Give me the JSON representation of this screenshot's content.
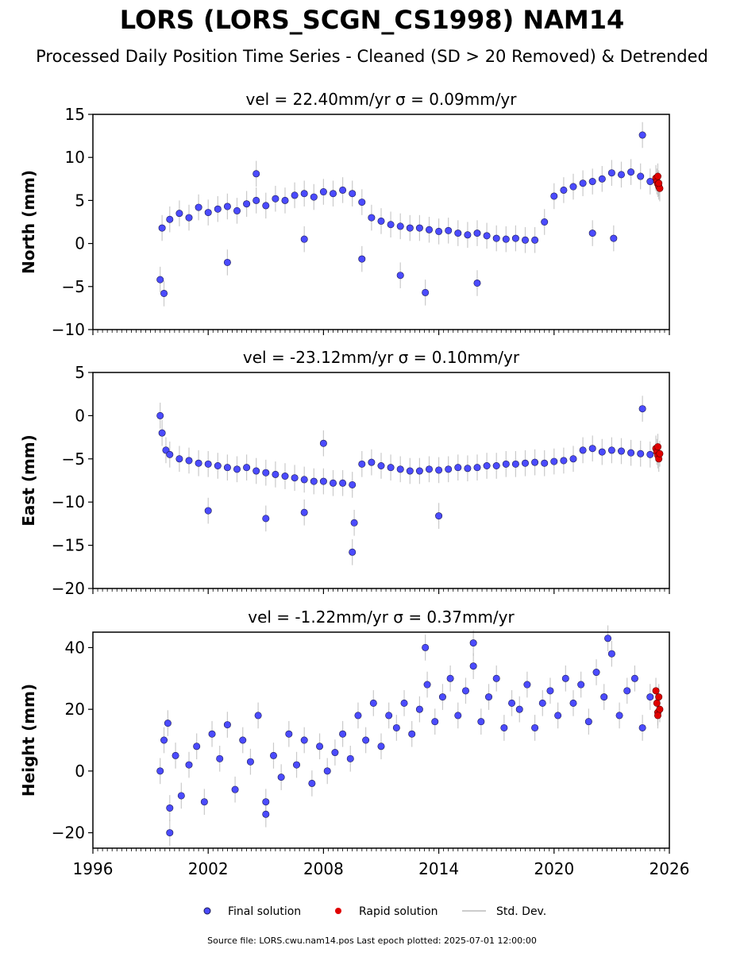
{
  "figure": {
    "title": "LORS (LORS_SCGN_CS1998) NAM14",
    "subtitle": "Processed Daily Position Time Series - Cleaned (SD > 20 Removed) & Detrended",
    "footer": "Source file: LORS.cwu.nam14.pos  Last epoch plotted: 2025-07-01 12:00:00"
  },
  "legend": {
    "final_label": "Final solution",
    "rapid_label": "Rapid solution",
    "std_label": "Std. Dev."
  },
  "colors": {
    "final": "#4b4bff",
    "rapid": "#e00000",
    "std": "#808080",
    "edge": "#1a1a50"
  },
  "chart_data": [
    {
      "type": "scatter",
      "title": "vel = 22.40mm/yr   σ = 0.09mm/yr",
      "xlabel": "",
      "ylabel": "North (mm)",
      "xlim": [
        1996,
        2026
      ],
      "ylim": [
        -10,
        15
      ],
      "yticks": [
        -10,
        -5,
        0,
        5,
        10,
        15
      ],
      "xticks": [
        1996,
        2002,
        2008,
        2014,
        2020,
        2026
      ],
      "grid": false,
      "legend": "bottom-center",
      "series": [
        {
          "name": "Final solution",
          "values": [
            [
              1999.5,
              -4.2
            ],
            [
              1999.6,
              1.8
            ],
            [
              1999.7,
              -5.8
            ],
            [
              2000.0,
              2.8
            ],
            [
              2000.5,
              3.5
            ],
            [
              2001.0,
              3.0
            ],
            [
              2001.5,
              4.2
            ],
            [
              2002.0,
              3.6
            ],
            [
              2002.5,
              4.0
            ],
            [
              2003.0,
              4.3
            ],
            [
              2003.5,
              3.8
            ],
            [
              2004.0,
              4.6
            ],
            [
              2004.5,
              5.0
            ],
            [
              2005.0,
              4.4
            ],
            [
              2005.5,
              5.2
            ],
            [
              2006.0,
              5.0
            ],
            [
              2006.5,
              5.6
            ],
            [
              2007.0,
              5.8
            ],
            [
              2007.5,
              5.4
            ],
            [
              2008.0,
              6.0
            ],
            [
              2008.5,
              5.8
            ],
            [
              2009.0,
              6.2
            ],
            [
              2009.5,
              5.8
            ],
            [
              2010.0,
              4.8
            ],
            [
              2010.5,
              3.0
            ],
            [
              2011.0,
              2.6
            ],
            [
              2011.5,
              2.2
            ],
            [
              2012.0,
              2.0
            ],
            [
              2012.5,
              1.8
            ],
            [
              2013.0,
              1.8
            ],
            [
              2013.5,
              1.6
            ],
            [
              2014.0,
              1.4
            ],
            [
              2014.5,
              1.5
            ],
            [
              2015.0,
              1.2
            ],
            [
              2015.5,
              1.0
            ],
            [
              2016.0,
              1.2
            ],
            [
              2016.5,
              0.9
            ],
            [
              2017.0,
              0.6
            ],
            [
              2017.5,
              0.5
            ],
            [
              2018.0,
              0.6
            ],
            [
              2018.5,
              0.4
            ],
            [
              2019.0,
              0.4
            ],
            [
              2019.5,
              2.5
            ],
            [
              2020.0,
              5.5
            ],
            [
              2020.5,
              6.2
            ],
            [
              2021.0,
              6.6
            ],
            [
              2021.5,
              7.0
            ],
            [
              2022.0,
              7.2
            ],
            [
              2022.5,
              7.5
            ],
            [
              2023.0,
              8.2
            ],
            [
              2023.5,
              8.0
            ],
            [
              2024.0,
              8.3
            ],
            [
              2024.5,
              7.8
            ],
            [
              2025.0,
              7.2
            ],
            [
              2003.0,
              -2.2
            ],
            [
              2004.5,
              8.1
            ],
            [
              2007.0,
              0.5
            ],
            [
              2010.0,
              -1.8
            ],
            [
              2012.0,
              -3.7
            ],
            [
              2013.3,
              -5.7
            ],
            [
              2016.0,
              -4.6
            ],
            [
              2023.1,
              0.6
            ],
            [
              2024.6,
              12.6
            ],
            [
              2022.0,
              1.2
            ]
          ]
        },
        {
          "name": "Rapid solution",
          "values": [
            [
              2025.3,
              7.6
            ],
            [
              2025.35,
              7.2
            ],
            [
              2025.4,
              6.9
            ],
            [
              2025.45,
              6.6
            ],
            [
              2025.5,
              6.4
            ],
            [
              2025.4,
              7.8
            ],
            [
              2025.45,
              7.0
            ]
          ]
        }
      ]
    },
    {
      "type": "scatter",
      "title": "vel = -23.12mm/yr   σ = 0.10mm/yr",
      "xlabel": "",
      "ylabel": "East (mm)",
      "xlim": [
        1996,
        2026
      ],
      "ylim": [
        -20,
        5
      ],
      "yticks": [
        -20,
        -15,
        -10,
        -5,
        0,
        5
      ],
      "xticks": [
        1996,
        2002,
        2008,
        2014,
        2020,
        2026
      ],
      "grid": false,
      "series": [
        {
          "name": "Final solution",
          "values": [
            [
              1999.5,
              0.0
            ],
            [
              1999.6,
              -2.0
            ],
            [
              1999.8,
              -4.0
            ],
            [
              2000.0,
              -4.5
            ],
            [
              2000.5,
              -5.0
            ],
            [
              2001.0,
              -5.2
            ],
            [
              2001.5,
              -5.5
            ],
            [
              2002.0,
              -5.6
            ],
            [
              2002.5,
              -5.8
            ],
            [
              2003.0,
              -6.0
            ],
            [
              2003.5,
              -6.2
            ],
            [
              2004.0,
              -6.0
            ],
            [
              2004.5,
              -6.4
            ],
            [
              2005.0,
              -6.6
            ],
            [
              2005.5,
              -6.8
            ],
            [
              2006.0,
              -7.0
            ],
            [
              2006.5,
              -7.2
            ],
            [
              2007.0,
              -7.4
            ],
            [
              2007.5,
              -7.6
            ],
            [
              2008.0,
              -7.6
            ],
            [
              2008.5,
              -7.8
            ],
            [
              2009.0,
              -7.8
            ],
            [
              2009.5,
              -8.0
            ],
            [
              2010.0,
              -5.6
            ],
            [
              2010.5,
              -5.4
            ],
            [
              2011.0,
              -5.8
            ],
            [
              2011.5,
              -6.0
            ],
            [
              2012.0,
              -6.2
            ],
            [
              2012.5,
              -6.4
            ],
            [
              2013.0,
              -6.4
            ],
            [
              2013.5,
              -6.2
            ],
            [
              2014.0,
              -6.3
            ],
            [
              2014.5,
              -6.2
            ],
            [
              2015.0,
              -6.0
            ],
            [
              2015.5,
              -6.1
            ],
            [
              2016.0,
              -6.0
            ],
            [
              2016.5,
              -5.8
            ],
            [
              2017.0,
              -5.8
            ],
            [
              2017.5,
              -5.6
            ],
            [
              2018.0,
              -5.6
            ],
            [
              2018.5,
              -5.5
            ],
            [
              2019.0,
              -5.4
            ],
            [
              2019.5,
              -5.5
            ],
            [
              2020.0,
              -5.3
            ],
            [
              2020.5,
              -5.2
            ],
            [
              2021.0,
              -5.0
            ],
            [
              2021.5,
              -4.0
            ],
            [
              2022.0,
              -3.8
            ],
            [
              2022.5,
              -4.2
            ],
            [
              2023.0,
              -4.0
            ],
            [
              2023.5,
              -4.1
            ],
            [
              2024.0,
              -4.3
            ],
            [
              2024.5,
              -4.4
            ],
            [
              2025.0,
              -4.5
            ],
            [
              2002.0,
              -11.0
            ],
            [
              2005.0,
              -11.9
            ],
            [
              2007.0,
              -11.2
            ],
            [
              2009.5,
              -15.8
            ],
            [
              2009.6,
              -12.4
            ],
            [
              2014.0,
              -11.6
            ],
            [
              2024.6,
              0.8
            ],
            [
              2008.0,
              -3.2
            ]
          ]
        },
        {
          "name": "Rapid solution",
          "values": [
            [
              2025.3,
              -3.8
            ],
            [
              2025.35,
              -4.2
            ],
            [
              2025.4,
              -4.6
            ],
            [
              2025.45,
              -5.0
            ],
            [
              2025.5,
              -4.4
            ],
            [
              2025.4,
              -3.6
            ]
          ]
        }
      ]
    },
    {
      "type": "scatter",
      "title": "vel = -1.22mm/yr   σ = 0.37mm/yr",
      "xlabel": "",
      "ylabel": "Height (mm)",
      "xlim": [
        1996,
        2026
      ],
      "ylim": [
        -25,
        45
      ],
      "yticks": [
        -20,
        0,
        20,
        40
      ],
      "xticks": [
        1996,
        2002,
        2008,
        2014,
        2020,
        2026
      ],
      "xticklabels": [
        "1996",
        "2002",
        "2008",
        "2014",
        "2020",
        "2026"
      ],
      "grid": false,
      "series": [
        {
          "name": "Final solution",
          "values": [
            [
              1999.5,
              0.0
            ],
            [
              1999.7,
              10.0
            ],
            [
              2000.0,
              -12.0
            ],
            [
              2000.3,
              5.0
            ],
            [
              2000.6,
              -8.0
            ],
            [
              2001.0,
              2.0
            ],
            [
              2001.4,
              8.0
            ],
            [
              2001.8,
              -10.0
            ],
            [
              2002.2,
              12.0
            ],
            [
              2002.6,
              4.0
            ],
            [
              2003.0,
              15.0
            ],
            [
              2003.4,
              -6.0
            ],
            [
              2003.8,
              10.0
            ],
            [
              2004.2,
              3.0
            ],
            [
              2004.6,
              18.0
            ],
            [
              2005.0,
              -10.0
            ],
            [
              2005.4,
              5.0
            ],
            [
              2005.8,
              -2.0
            ],
            [
              2006.2,
              12.0
            ],
            [
              2006.6,
              2.0
            ],
            [
              2007.0,
              10.0
            ],
            [
              2007.4,
              -4.0
            ],
            [
              2007.8,
              8.0
            ],
            [
              2008.2,
              0.0
            ],
            [
              2008.6,
              6.0
            ],
            [
              2009.0,
              12.0
            ],
            [
              2009.4,
              4.0
            ],
            [
              2009.8,
              18.0
            ],
            [
              2010.2,
              10.0
            ],
            [
              2010.6,
              22.0
            ],
            [
              2011.0,
              8.0
            ],
            [
              2011.4,
              18.0
            ],
            [
              2011.8,
              14.0
            ],
            [
              2012.2,
              22.0
            ],
            [
              2012.6,
              12.0
            ],
            [
              2013.0,
              20.0
            ],
            [
              2013.4,
              28.0
            ],
            [
              2013.8,
              16.0
            ],
            [
              2014.2,
              24.0
            ],
            [
              2014.6,
              30.0
            ],
            [
              2015.0,
              18.0
            ],
            [
              2015.4,
              26.0
            ],
            [
              2015.8,
              34.0
            ],
            [
              2016.2,
              16.0
            ],
            [
              2016.6,
              24.0
            ],
            [
              2017.0,
              30.0
            ],
            [
              2017.4,
              14.0
            ],
            [
              2017.8,
              22.0
            ],
            [
              2018.2,
              20.0
            ],
            [
              2018.6,
              28.0
            ],
            [
              2019.0,
              14.0
            ],
            [
              2019.4,
              22.0
            ],
            [
              2019.8,
              26.0
            ],
            [
              2020.2,
              18.0
            ],
            [
              2020.6,
              30.0
            ],
            [
              2021.0,
              22.0
            ],
            [
              2021.4,
              28.0
            ],
            [
              2021.8,
              16.0
            ],
            [
              2022.2,
              32.0
            ],
            [
              2022.6,
              24.0
            ],
            [
              2023.0,
              38.0
            ],
            [
              2023.4,
              18.0
            ],
            [
              2023.8,
              26.0
            ],
            [
              2024.2,
              30.0
            ],
            [
              2024.6,
              14.0
            ],
            [
              2025.0,
              24.0
            ],
            [
              2000.0,
              -20.0
            ],
            [
              2013.3,
              40.0
            ],
            [
              2015.8,
              41.5
            ],
            [
              2022.8,
              43.0
            ],
            [
              1999.9,
              15.5
            ],
            [
              2005.0,
              -14.0
            ]
          ]
        },
        {
          "name": "Rapid solution",
          "values": [
            [
              2025.3,
              26.0
            ],
            [
              2025.35,
              22.0
            ],
            [
              2025.4,
              19.0
            ],
            [
              2025.45,
              24.0
            ],
            [
              2025.5,
              20.0
            ],
            [
              2025.4,
              18.0
            ]
          ]
        }
      ]
    }
  ]
}
